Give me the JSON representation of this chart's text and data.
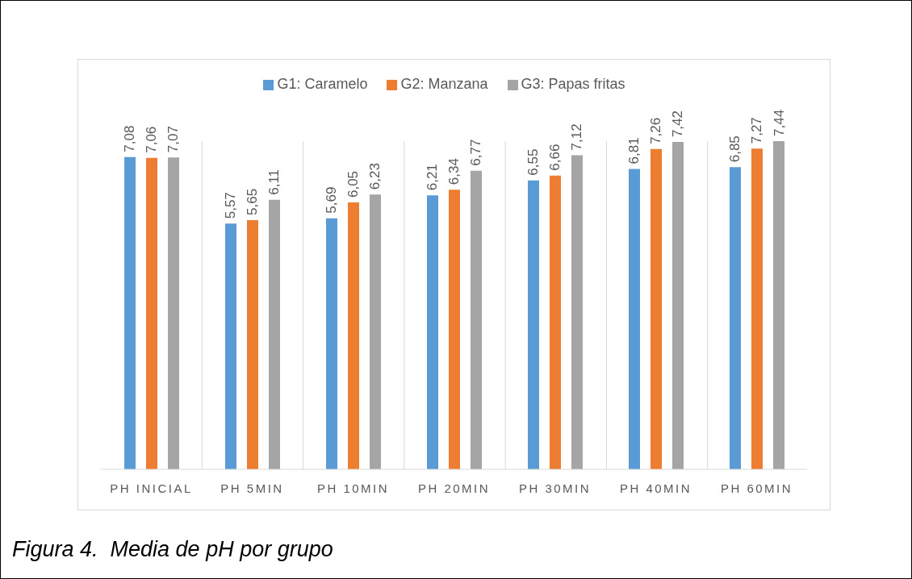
{
  "chart_data": {
    "type": "bar",
    "categories": [
      "PH INICIAL",
      "PH 5MIN",
      "PH 10MIN",
      "PH 20MIN",
      "PH 30MIN",
      "PH 40MIN",
      "PH 60MIN"
    ],
    "series": [
      {
        "name": "G1: Caramelo",
        "color": "#5b9bd5",
        "values": [
          7.08,
          5.57,
          5.69,
          6.21,
          6.55,
          6.81,
          6.85
        ],
        "value_labels": [
          "7,08",
          "5,57",
          "5,69",
          "6,21",
          "6,55",
          "6,81",
          "6,85"
        ]
      },
      {
        "name": "G2: Manzana",
        "color": "#ed7d31",
        "values": [
          7.06,
          5.65,
          6.05,
          6.34,
          6.66,
          7.26,
          7.27
        ],
        "value_labels": [
          "7,06",
          "5,65",
          "6,05",
          "6,34",
          "6,66",
          "7,26",
          "7,27"
        ]
      },
      {
        "name": "G3: Papas fritas",
        "color": "#a5a5a5",
        "values": [
          7.07,
          6.11,
          6.23,
          6.77,
          7.12,
          7.42,
          7.44
        ],
        "value_labels": [
          "7,07",
          "6,11",
          "6,23",
          "6,77",
          "7,12",
          "7,42",
          "7,44"
        ]
      }
    ],
    "grid": "x",
    "legend": "top",
    "annotations": [
      "Figura 4.  Media de pH por grupo"
    ]
  }
}
